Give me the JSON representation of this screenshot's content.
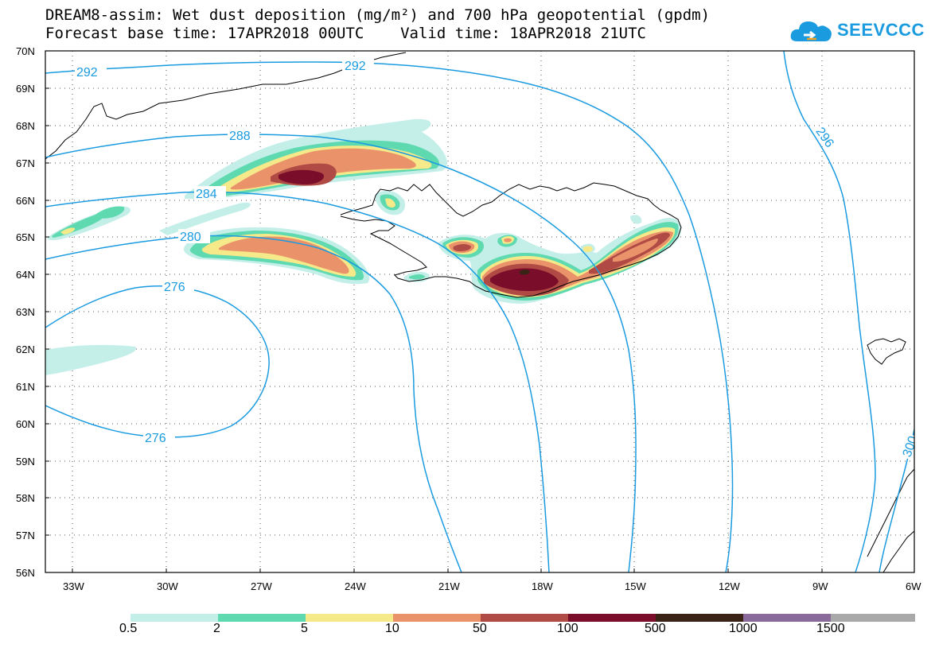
{
  "title": {
    "line1": "DREAM8-assim: Wet dust deposition (mg/m²) and 700 hPa geopotential (gpdm)",
    "line2": "Forecast base time: 17APR2018 00UTC    Valid time: 18APR2018 21UTC"
  },
  "logo": {
    "text": "SEEVCCC",
    "color": "#1a9be0",
    "icon": "cloud-icon"
  },
  "map": {
    "lat_labels": [
      "70N",
      "69N",
      "68N",
      "67N",
      "66N",
      "65N",
      "64N",
      "63N",
      "62N",
      "61N",
      "60N",
      "59N",
      "58N",
      "57N",
      "56N"
    ],
    "lon_labels": [
      "33W",
      "30W",
      "27W",
      "24W",
      "21W",
      "18W",
      "15W",
      "12W",
      "9W",
      "6W"
    ],
    "contour_labels": [
      "292",
      "292",
      "288",
      "284",
      "280",
      "276",
      "276",
      "296",
      "300"
    ],
    "contour_color": "#1a9be0",
    "coast_color": "#000000"
  },
  "legend": {
    "colors": [
      "#c4efe9",
      "#5fd9b0",
      "#f6e98a",
      "#ea936b",
      "#b04a45",
      "#7a0d2a",
      "#3a2315",
      "#8a6a9a",
      "#a9a9a9"
    ],
    "labels": [
      "0.5",
      "2",
      "5",
      "10",
      "50",
      "100",
      "500",
      "1000",
      "1500"
    ]
  }
}
